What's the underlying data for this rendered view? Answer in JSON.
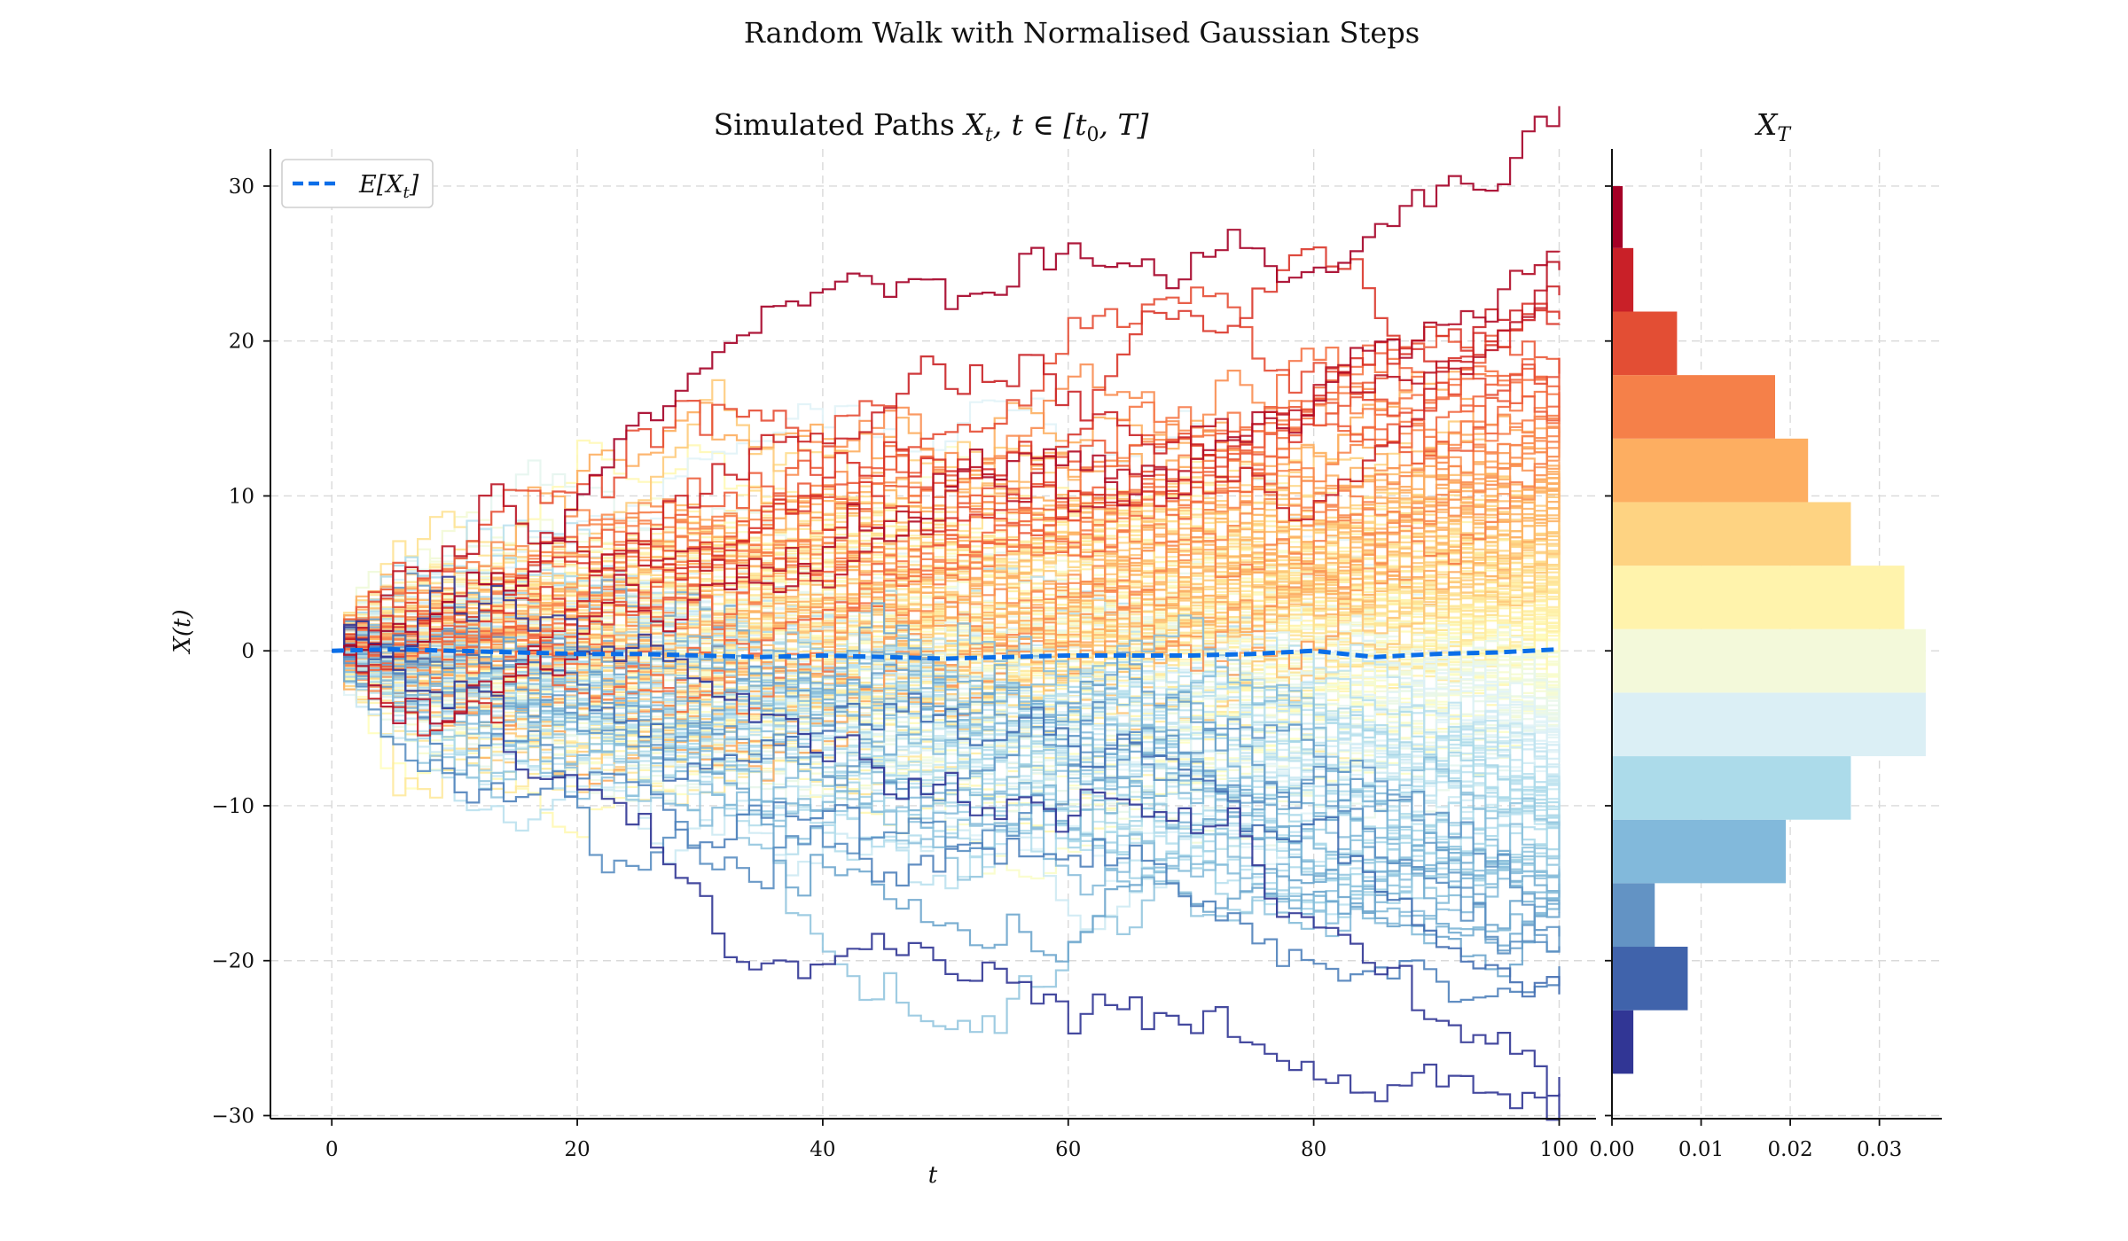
{
  "figure": {
    "suptitle": "Random Walk with Normalised Gaussian Steps"
  },
  "chart_data": [
    {
      "type": "line",
      "title": "Simulated Paths X_t, t ∈ [t_0, T]",
      "title_prefix": "Simulated Paths ",
      "title_math": "X",
      "title_math_sub": "t",
      "title_math_rest": ", t ∈ [t",
      "title_math_sub2": "0",
      "title_math_end": ", T]",
      "xlabel": "t",
      "ylabel": "X(t)",
      "xlim": [
        -5,
        103
      ],
      "ylim": [
        -30.2,
        32.4
      ],
      "xticks": [
        0,
        20,
        40,
        60,
        80,
        100
      ],
      "yticks": [
        -30,
        -20,
        -10,
        0,
        10,
        20,
        30
      ],
      "xtick_labels": [
        "0",
        "20",
        "40",
        "60",
        "80",
        "100"
      ],
      "ytick_labels": [
        "−30",
        "−20",
        "−10",
        "0",
        "10",
        "20",
        "30"
      ],
      "grid": true,
      "legend": {
        "placement": "upper-left",
        "entries": [
          {
            "label": "E[X_t]",
            "label_main": "E[X",
            "label_sub": "t",
            "label_end": "]",
            "color": "#0a6ee8",
            "style": "dashed"
          }
        ]
      },
      "paths": {
        "count": 200,
        "steps": 100,
        "step_distribution": "normal(0,1)",
        "colormap": "RdYlBu (colored by final value X_T)",
        "colors": [
          "#313695",
          "#4575b4",
          "#74add1",
          "#abd9e9",
          "#e0f3f8",
          "#ffffbf",
          "#fee090",
          "#fdae61",
          "#f46d43",
          "#d73027",
          "#a50026"
        ]
      },
      "mean_series": {
        "name": "E[X_t]",
        "x": [
          0,
          5,
          10,
          15,
          20,
          25,
          30,
          35,
          40,
          45,
          50,
          55,
          60,
          65,
          70,
          75,
          80,
          85,
          90,
          95,
          100
        ],
        "y": [
          0,
          0.1,
          0,
          -0.1,
          -0.2,
          -0.2,
          -0.3,
          -0.4,
          -0.3,
          -0.4,
          -0.5,
          -0.4,
          -0.3,
          -0.3,
          -0.3,
          -0.2,
          0,
          -0.4,
          -0.2,
          -0.1,
          0.1
        ]
      }
    },
    {
      "type": "bar",
      "orientation": "horizontal",
      "title": "X_T",
      "title_main": "X",
      "title_sub": "T",
      "xlim": [
        0,
        0.037
      ],
      "xticks": [
        0,
        0.01,
        0.02,
        0.03
      ],
      "xtick_labels": [
        "0.00",
        "0.01",
        "0.02",
        "0.03"
      ],
      "grid": true,
      "bins": [
        {
          "y0": -27.3,
          "y1": -23.2,
          "density": 0.0024
        },
        {
          "y0": -23.2,
          "y1": -19.1,
          "density": 0.0085
        },
        {
          "y0": -19.1,
          "y1": -15.0,
          "density": 0.0048
        },
        {
          "y0": -15.0,
          "y1": -10.9,
          "density": 0.0195
        },
        {
          "y0": -10.9,
          "y1": -6.8,
          "density": 0.0268
        },
        {
          "y0": -6.8,
          "y1": -2.7,
          "density": 0.0352
        },
        {
          "y0": -2.7,
          "y1": 1.4,
          "density": 0.0352
        },
        {
          "y0": 1.4,
          "y1": 5.5,
          "density": 0.0328
        },
        {
          "y0": 5.5,
          "y1": 9.6,
          "density": 0.0268
        },
        {
          "y0": 9.6,
          "y1": 13.7,
          "density": 0.022
        },
        {
          "y0": 13.7,
          "y1": 17.8,
          "density": 0.0183
        },
        {
          "y0": 17.8,
          "y1": 21.9,
          "density": 0.0073
        },
        {
          "y0": 21.9,
          "y1": 26.0,
          "density": 0.0024
        },
        {
          "y0": 26.0,
          "y1": 30.0,
          "density": 0.0012
        }
      ],
      "bar_colors": [
        "#313695",
        "#4063ab",
        "#6393c4",
        "#82b9db",
        "#acdbea",
        "#dbeff5",
        "#f3f9da",
        "#fff3ac",
        "#fed382",
        "#fdae61",
        "#f58049",
        "#e34e34",
        "#c92028",
        "#a50026"
      ]
    }
  ]
}
